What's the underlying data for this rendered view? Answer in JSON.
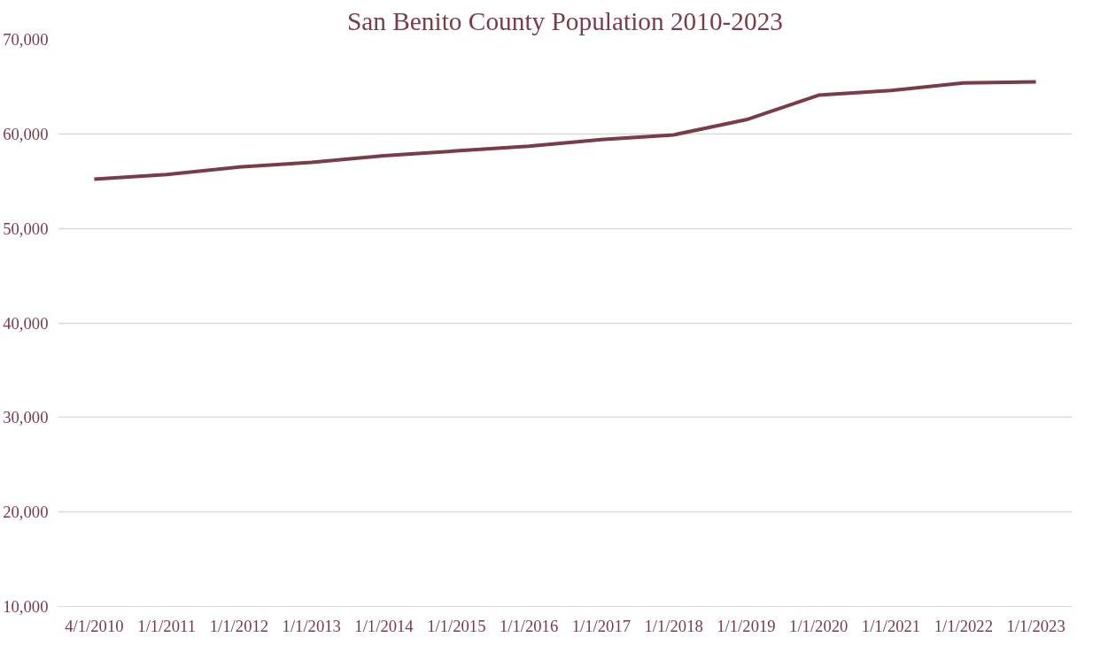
{
  "chart_data": {
    "type": "line",
    "title": "San Benito County Population 2010-2023",
    "categories": [
      "4/1/2010",
      "1/1/2011",
      "1/1/2012",
      "1/1/2013",
      "1/1/2014",
      "1/1/2015",
      "1/1/2016",
      "1/1/2017",
      "1/1/2018",
      "1/1/2019",
      "1/1/2020",
      "1/1/2021",
      "1/1/2022",
      "1/1/2023"
    ],
    "series": [
      {
        "color": "#7a3b4b",
        "values": [
          55200,
          55700,
          56500,
          57000,
          57700,
          58200,
          58700,
          59400,
          59900,
          61500,
          64100,
          64600,
          65400,
          65500
        ]
      }
    ],
    "ylim": [
      10000,
      70000
    ],
    "yticks": [
      {
        "value": 10000,
        "label": "10,000"
      },
      {
        "value": 20000,
        "label": "20,000"
      },
      {
        "value": 30000,
        "label": "30,000"
      },
      {
        "value": 40000,
        "label": "40,000"
      },
      {
        "value": 50000,
        "label": "50,000"
      },
      {
        "value": 60000,
        "label": "60,000"
      },
      {
        "value": 70000,
        "label": "70,000"
      }
    ],
    "grid": "y",
    "marker": "none",
    "line_style": "solid"
  }
}
